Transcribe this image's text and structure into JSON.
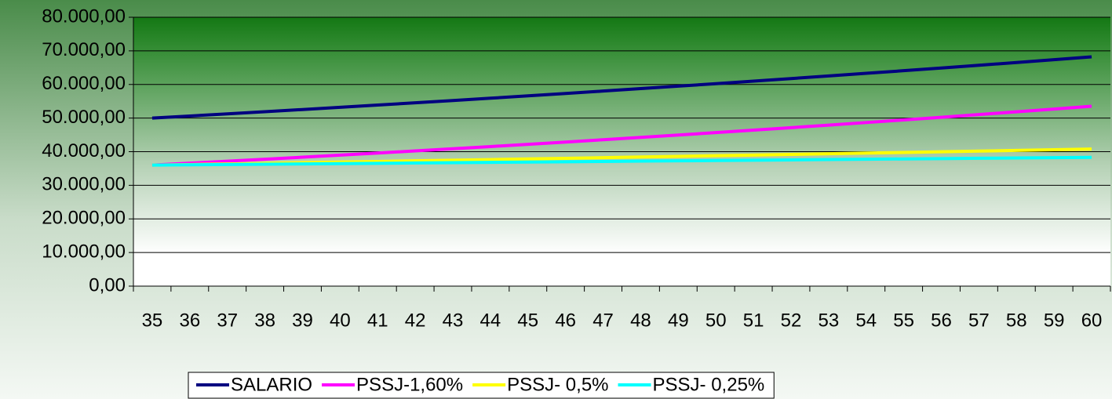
{
  "chart_data": {
    "type": "line",
    "categories": [
      "35",
      "36",
      "37",
      "38",
      "39",
      "40",
      "41",
      "42",
      "43",
      "44",
      "45",
      "46",
      "47",
      "48",
      "49",
      "50",
      "51",
      "52",
      "53",
      "54",
      "55",
      "56",
      "57",
      "58",
      "59",
      "60"
    ],
    "series": [
      {
        "name": "SALARIO",
        "color": "#000080",
        "values": [
          50000,
          50625,
          51258,
          51899,
          52547,
          53204,
          53869,
          54543,
          55224,
          55915,
          56614,
          57321,
          58038,
          58763,
          59498,
          60242,
          60995,
          61757,
          62529,
          63311,
          64102,
          64903,
          65715,
          66536,
          67368,
          68210
        ]
      },
      {
        "name": "PSSJ-1,60%",
        "color": "#ff00ff",
        "values": [
          36000,
          36576,
          37161,
          37756,
          38360,
          38974,
          39597,
          40231,
          40875,
          41529,
          42193,
          42868,
          43554,
          44251,
          44959,
          45678,
          46409,
          47152,
          47906,
          48673,
          49451,
          50243,
          51047,
          51863,
          52693,
          53536
        ]
      },
      {
        "name": "PSSJ- 0,5%",
        "color": "#ffff00",
        "values": [
          36000,
          36180,
          36361,
          36543,
          36725,
          36909,
          37094,
          37279,
          37466,
          37653,
          37841,
          38031,
          38221,
          38412,
          38604,
          38797,
          38991,
          39186,
          39382,
          39579,
          39777,
          39976,
          40176,
          40376,
          40578,
          40781
        ]
      },
      {
        "name": "PSSJ- 0,25%",
        "color": "#00ffff",
        "values": [
          36000,
          36090,
          36180,
          36271,
          36361,
          36452,
          36543,
          36635,
          36726,
          36818,
          36910,
          37002,
          37095,
          37188,
          37281,
          37374,
          37467,
          37561,
          37655,
          37749,
          37843,
          37938,
          38033,
          38128,
          38223,
          38319
        ]
      }
    ],
    "ylim": [
      0,
      80000
    ],
    "yticks": [
      {
        "value": 0,
        "label": "0,00"
      },
      {
        "value": 10000,
        "label": "10.000,00"
      },
      {
        "value": 20000,
        "label": "20.000,00"
      },
      {
        "value": 30000,
        "label": "30.000,00"
      },
      {
        "value": 40000,
        "label": "40.000,00"
      },
      {
        "value": 50000,
        "label": "50.000,00"
      },
      {
        "value": 60000,
        "label": "60.000,00"
      },
      {
        "value": 70000,
        "label": "70.000,00"
      },
      {
        "value": 80000,
        "label": "80.000,00"
      }
    ],
    "grid": true,
    "legend": "bottom"
  }
}
